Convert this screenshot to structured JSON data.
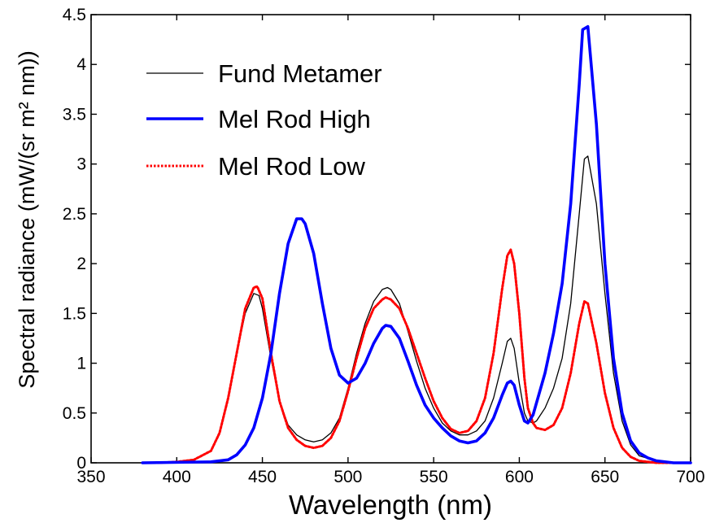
{
  "chart_data": {
    "type": "line",
    "title": "",
    "xlabel": "Wavelength (nm)",
    "ylabel": "Spectral radiance (mW/(sr m² nm))",
    "xlim": [
      350,
      700
    ],
    "ylim": [
      0,
      4.5
    ],
    "x_ticks": [
      "350",
      "400",
      "450",
      "500",
      "550",
      "600",
      "650",
      "700"
    ],
    "y_ticks": [
      "0",
      "0.5",
      "1",
      "1.5",
      "2",
      "2.5",
      "3",
      "3.5",
      "4",
      "4.5"
    ],
    "grid": false,
    "legend_position": "top-left",
    "series": [
      {
        "name": "Fund Metamer",
        "color": "#000000",
        "style": "solid-thin",
        "x": [
          380,
          390,
          400,
          410,
          420,
          425,
          430,
          435,
          440,
          445,
          448,
          450,
          455,
          460,
          465,
          470,
          475,
          480,
          485,
          490,
          495,
          500,
          505,
          510,
          515,
          520,
          523,
          525,
          530,
          535,
          540,
          545,
          550,
          555,
          560,
          565,
          570,
          575,
          580,
          585,
          590,
          593,
          595,
          597,
          600,
          603,
          605,
          608,
          610,
          615,
          620,
          625,
          630,
          635,
          638,
          640,
          645,
          650,
          655,
          660,
          665,
          670,
          680,
          690,
          700
        ],
        "y": [
          0,
          0,
          0.01,
          0.03,
          0.12,
          0.3,
          0.65,
          1.1,
          1.5,
          1.7,
          1.68,
          1.55,
          1.05,
          0.62,
          0.38,
          0.28,
          0.23,
          0.21,
          0.23,
          0.3,
          0.45,
          0.75,
          1.1,
          1.4,
          1.62,
          1.74,
          1.76,
          1.74,
          1.6,
          1.32,
          1.02,
          0.75,
          0.55,
          0.4,
          0.32,
          0.28,
          0.28,
          0.32,
          0.42,
          0.65,
          1.0,
          1.22,
          1.25,
          1.15,
          0.8,
          0.5,
          0.42,
          0.4,
          0.42,
          0.55,
          0.75,
          1.05,
          1.6,
          2.5,
          3.05,
          3.08,
          2.6,
          1.7,
          0.9,
          0.42,
          0.18,
          0.07,
          0.02,
          0,
          0
        ]
      },
      {
        "name": "Mel Rod High",
        "color": "#0000ff",
        "style": "solid-thick",
        "x": [
          380,
          420,
          430,
          435,
          440,
          445,
          450,
          455,
          460,
          465,
          470,
          473,
          475,
          480,
          485,
          490,
          495,
          500,
          505,
          510,
          515,
          520,
          522,
          525,
          530,
          535,
          540,
          545,
          550,
          555,
          560,
          565,
          570,
          575,
          580,
          585,
          590,
          593,
          595,
          597,
          600,
          603,
          605,
          608,
          610,
          615,
          620,
          625,
          630,
          635,
          637,
          640,
          645,
          650,
          655,
          660,
          665,
          670,
          675,
          680,
          690,
          700
        ],
        "y": [
          0,
          0.01,
          0.03,
          0.08,
          0.18,
          0.35,
          0.65,
          1.1,
          1.7,
          2.2,
          2.45,
          2.45,
          2.4,
          2.1,
          1.6,
          1.15,
          0.88,
          0.8,
          0.85,
          1.0,
          1.2,
          1.35,
          1.38,
          1.37,
          1.25,
          1.02,
          0.78,
          0.58,
          0.45,
          0.35,
          0.27,
          0.22,
          0.2,
          0.22,
          0.3,
          0.45,
          0.68,
          0.8,
          0.82,
          0.78,
          0.58,
          0.42,
          0.4,
          0.48,
          0.6,
          0.9,
          1.3,
          1.8,
          2.6,
          3.8,
          4.35,
          4.38,
          3.4,
          2.0,
          1.05,
          0.5,
          0.22,
          0.1,
          0.05,
          0.02,
          0,
          0
        ]
      },
      {
        "name": "Mel Rod Low",
        "color": "#ff0000",
        "style": "dotted",
        "x": [
          380,
          390,
          400,
          410,
          420,
          425,
          430,
          435,
          440,
          445,
          447,
          450,
          455,
          460,
          465,
          470,
          475,
          480,
          485,
          490,
          495,
          500,
          505,
          510,
          515,
          520,
          522,
          525,
          530,
          535,
          540,
          545,
          550,
          555,
          560,
          565,
          570,
          575,
          580,
          585,
          590,
          593,
          595,
          597,
          600,
          603,
          605,
          608,
          610,
          615,
          620,
          625,
          630,
          635,
          638,
          640,
          645,
          650,
          655,
          660,
          665,
          670,
          680,
          690,
          700
        ],
        "y": [
          0,
          0,
          0.01,
          0.03,
          0.12,
          0.3,
          0.65,
          1.1,
          1.55,
          1.76,
          1.77,
          1.65,
          1.1,
          0.62,
          0.35,
          0.23,
          0.17,
          0.15,
          0.17,
          0.25,
          0.42,
          0.72,
          1.05,
          1.35,
          1.55,
          1.64,
          1.66,
          1.64,
          1.55,
          1.35,
          1.1,
          0.85,
          0.62,
          0.45,
          0.34,
          0.3,
          0.32,
          0.42,
          0.65,
          1.1,
          1.75,
          2.08,
          2.14,
          2.0,
          1.5,
          0.85,
          0.55,
          0.4,
          0.35,
          0.33,
          0.38,
          0.55,
          0.9,
          1.4,
          1.62,
          1.6,
          1.2,
          0.7,
          0.35,
          0.15,
          0.06,
          0.02,
          0,
          0,
          0
        ]
      }
    ]
  }
}
